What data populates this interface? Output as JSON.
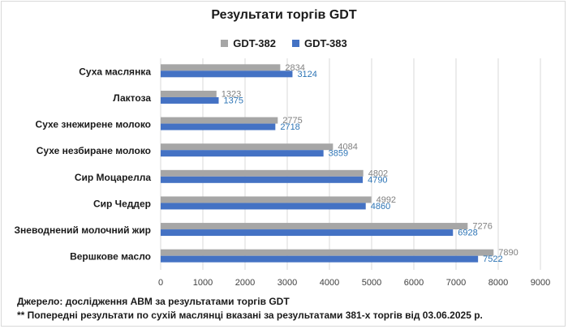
{
  "chart_data": {
    "type": "bar",
    "orientation": "horizontal",
    "title": "Результати торгів GDT",
    "categories": [
      "Суха маслянка",
      "Лактоза",
      "Сухе знежирене молоко",
      "Сухе незбиране молоко",
      "Сир Моцарелла",
      "Сир Чеддер",
      "Зневоднений молочний жир",
      "Вершкове масло"
    ],
    "series": [
      {
        "name": "GDT-382",
        "color": "#a6a6a6",
        "label_color": "#808080",
        "values": [
          2834,
          1323,
          2775,
          4084,
          4802,
          4992,
          7276,
          7890
        ]
      },
      {
        "name": "GDT-383",
        "color": "#4472c4",
        "label_color": "#2e75b6",
        "values": [
          3124,
          1375,
          2718,
          3859,
          4790,
          4860,
          6928,
          7522
        ]
      }
    ],
    "xlim": [
      0,
      9000
    ],
    "xticks": [
      "0",
      "1000",
      "2000",
      "3000",
      "4000",
      "5000",
      "6000",
      "7000",
      "8000",
      "9000"
    ],
    "grid": true,
    "legend": "top-center"
  },
  "footnotes": {
    "source": "Джерело: дослідження АВМ за результатами торгів GDT",
    "note": "** Попередні результати по сухій маслянці вказані за результатами 381-х торгів від 03.06.2025 р."
  }
}
